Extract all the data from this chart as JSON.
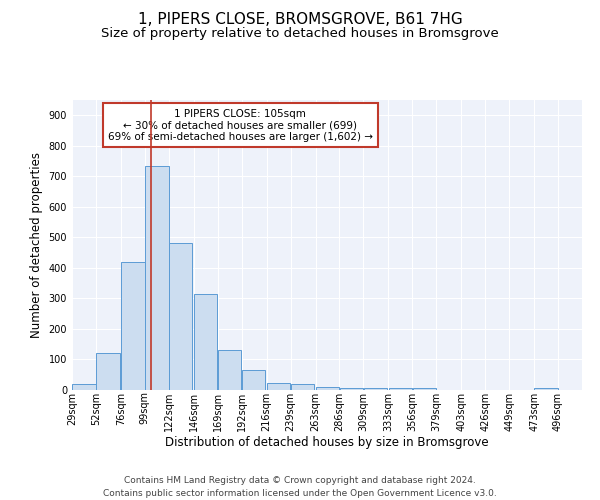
{
  "title": "1, PIPERS CLOSE, BROMSGROVE, B61 7HG",
  "subtitle": "Size of property relative to detached houses in Bromsgrove",
  "xlabel": "Distribution of detached houses by size in Bromsgrove",
  "ylabel": "Number of detached properties",
  "footer_line1": "Contains HM Land Registry data © Crown copyright and database right 2024.",
  "footer_line2": "Contains public sector information licensed under the Open Government Licence v3.0.",
  "annotation_line1": "1 PIPERS CLOSE: 105sqm",
  "annotation_line2": "← 30% of detached houses are smaller (699)",
  "annotation_line3": "69% of semi-detached houses are larger (1,602) →",
  "property_line_x": 105,
  "bar_color": "#ccddf0",
  "bar_edge_color": "#5b9bd5",
  "property_line_color": "#c0392b",
  "annotation_box_color": "#c0392b",
  "background_color": "#eef2fa",
  "categories": [
    "29sqm",
    "52sqm",
    "76sqm",
    "99sqm",
    "122sqm",
    "146sqm",
    "169sqm",
    "192sqm",
    "216sqm",
    "239sqm",
    "263sqm",
    "286sqm",
    "309sqm",
    "333sqm",
    "356sqm",
    "379sqm",
    "403sqm",
    "426sqm",
    "449sqm",
    "473sqm",
    "496sqm"
  ],
  "bin_edges": [
    29,
    52,
    76,
    99,
    122,
    146,
    169,
    192,
    216,
    239,
    263,
    286,
    309,
    333,
    356,
    379,
    403,
    426,
    449,
    473,
    496
  ],
  "values": [
    20,
    122,
    418,
    735,
    480,
    315,
    132,
    66,
    24,
    21,
    10,
    7,
    5,
    5,
    5,
    0,
    0,
    0,
    0,
    8,
    0
  ],
  "ylim": [
    0,
    950
  ],
  "yticks": [
    0,
    100,
    200,
    300,
    400,
    500,
    600,
    700,
    800,
    900
  ],
  "title_fontsize": 11,
  "subtitle_fontsize": 9.5,
  "xlabel_fontsize": 8.5,
  "ylabel_fontsize": 8.5,
  "tick_fontsize": 7,
  "annotation_fontsize": 7.5,
  "footer_fontsize": 6.5
}
